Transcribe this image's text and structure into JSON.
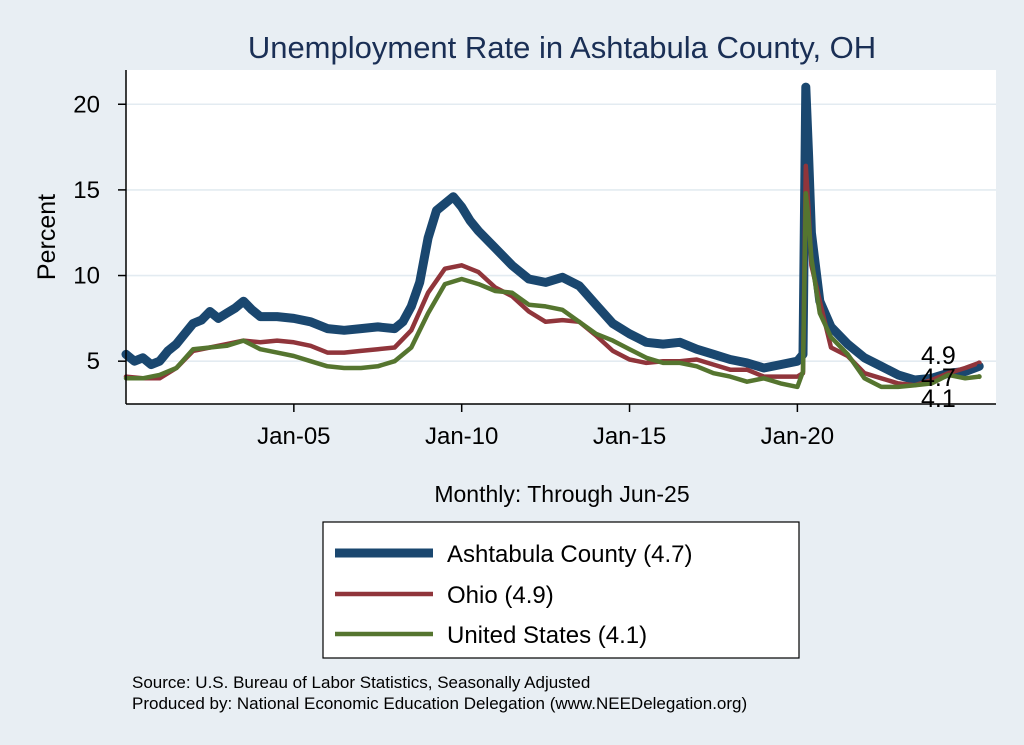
{
  "chart_data": {
    "type": "line",
    "title": "Unemployment Rate in Ashtabula  County, OH",
    "ylabel": "Percent",
    "xlabel": "Monthly: Through Jun-25",
    "ylim": [
      2.5,
      22
    ],
    "xlim": [
      "2000-01",
      "2025-12"
    ],
    "yticks": [
      5,
      10,
      15,
      20
    ],
    "xticks": [
      {
        "date": "2005-01",
        "label": "Jan-05"
      },
      {
        "date": "2010-01",
        "label": "Jan-10"
      },
      {
        "date": "2015-01",
        "label": "Jan-15"
      },
      {
        "date": "2020-01",
        "label": "Jan-20"
      }
    ],
    "grid": true,
    "legend_position": "bottom",
    "series": [
      {
        "name": "Ashtabula  County (4.7)",
        "color": "#1a476f",
        "end_label": "4.7",
        "points": [
          [
            "2000-01",
            5.4
          ],
          [
            "2000-04",
            5.0
          ],
          [
            "2000-07",
            5.2
          ],
          [
            "2000-10",
            4.8
          ],
          [
            "2001-01",
            5.0
          ],
          [
            "2001-04",
            5.6
          ],
          [
            "2001-07",
            6.0
          ],
          [
            "2001-10",
            6.6
          ],
          [
            "2002-01",
            7.2
          ],
          [
            "2002-04",
            7.4
          ],
          [
            "2002-07",
            7.9
          ],
          [
            "2002-10",
            7.5
          ],
          [
            "2003-01",
            7.8
          ],
          [
            "2003-04",
            8.1
          ],
          [
            "2003-07",
            8.5
          ],
          [
            "2003-10",
            8.0
          ],
          [
            "2004-01",
            7.6
          ],
          [
            "2004-07",
            7.6
          ],
          [
            "2005-01",
            7.5
          ],
          [
            "2005-07",
            7.3
          ],
          [
            "2006-01",
            6.9
          ],
          [
            "2006-07",
            6.8
          ],
          [
            "2007-01",
            6.9
          ],
          [
            "2007-07",
            7.0
          ],
          [
            "2008-01",
            6.9
          ],
          [
            "2008-04",
            7.3
          ],
          [
            "2008-07",
            8.2
          ],
          [
            "2008-10",
            9.6
          ],
          [
            "2009-01",
            12.2
          ],
          [
            "2009-04",
            13.8
          ],
          [
            "2009-07",
            14.2
          ],
          [
            "2009-10",
            14.6
          ],
          [
            "2010-01",
            14.0
          ],
          [
            "2010-04",
            13.2
          ],
          [
            "2010-07",
            12.6
          ],
          [
            "2011-01",
            11.6
          ],
          [
            "2011-07",
            10.6
          ],
          [
            "2012-01",
            9.8
          ],
          [
            "2012-07",
            9.6
          ],
          [
            "2013-01",
            9.9
          ],
          [
            "2013-07",
            9.4
          ],
          [
            "2014-01",
            8.3
          ],
          [
            "2014-07",
            7.2
          ],
          [
            "2015-01",
            6.6
          ],
          [
            "2015-07",
            6.1
          ],
          [
            "2016-01",
            6.0
          ],
          [
            "2016-07",
            6.1
          ],
          [
            "2017-01",
            5.7
          ],
          [
            "2017-07",
            5.4
          ],
          [
            "2018-01",
            5.1
          ],
          [
            "2018-07",
            4.9
          ],
          [
            "2019-01",
            4.6
          ],
          [
            "2019-07",
            4.8
          ],
          [
            "2020-01",
            5.0
          ],
          [
            "2020-03",
            5.4
          ],
          [
            "2020-04",
            21.0
          ],
          [
            "2020-05",
            17.0
          ],
          [
            "2020-06",
            12.5
          ],
          [
            "2020-09",
            8.5
          ],
          [
            "2021-01",
            7.0
          ],
          [
            "2021-07",
            6.0
          ],
          [
            "2022-01",
            5.2
          ],
          [
            "2022-07",
            4.7
          ],
          [
            "2023-01",
            4.2
          ],
          [
            "2023-07",
            3.9
          ],
          [
            "2024-01",
            4.0
          ],
          [
            "2024-07",
            4.3
          ],
          [
            "2025-01",
            4.4
          ],
          [
            "2025-06",
            4.7
          ]
        ]
      },
      {
        "name": "Ohio (4.9)",
        "color": "#90353b",
        "end_label": "4.9",
        "points": [
          [
            "2000-01",
            4.1
          ],
          [
            "2000-07",
            4.0
          ],
          [
            "2001-01",
            4.0
          ],
          [
            "2001-07",
            4.6
          ],
          [
            "2002-01",
            5.6
          ],
          [
            "2002-07",
            5.8
          ],
          [
            "2003-01",
            6.0
          ],
          [
            "2003-07",
            6.2
          ],
          [
            "2004-01",
            6.1
          ],
          [
            "2004-07",
            6.2
          ],
          [
            "2005-01",
            6.1
          ],
          [
            "2005-07",
            5.9
          ],
          [
            "2006-01",
            5.5
          ],
          [
            "2006-07",
            5.5
          ],
          [
            "2007-01",
            5.6
          ],
          [
            "2007-07",
            5.7
          ],
          [
            "2008-01",
            5.8
          ],
          [
            "2008-07",
            6.8
          ],
          [
            "2009-01",
            9.0
          ],
          [
            "2009-07",
            10.4
          ],
          [
            "2010-01",
            10.6
          ],
          [
            "2010-07",
            10.2
          ],
          [
            "2011-01",
            9.3
          ],
          [
            "2011-07",
            8.8
          ],
          [
            "2012-01",
            7.9
          ],
          [
            "2012-07",
            7.3
          ],
          [
            "2013-01",
            7.4
          ],
          [
            "2013-07",
            7.3
          ],
          [
            "2014-01",
            6.5
          ],
          [
            "2014-07",
            5.6
          ],
          [
            "2015-01",
            5.1
          ],
          [
            "2015-07",
            4.9
          ],
          [
            "2016-01",
            5.0
          ],
          [
            "2016-07",
            5.0
          ],
          [
            "2017-01",
            5.1
          ],
          [
            "2017-07",
            4.8
          ],
          [
            "2018-01",
            4.5
          ],
          [
            "2018-07",
            4.5
          ],
          [
            "2019-01",
            4.1
          ],
          [
            "2019-07",
            4.1
          ],
          [
            "2020-01",
            4.1
          ],
          [
            "2020-03",
            4.3
          ],
          [
            "2020-04",
            16.4
          ],
          [
            "2020-05",
            13.8
          ],
          [
            "2020-06",
            10.6
          ],
          [
            "2020-09",
            8.5
          ],
          [
            "2021-01",
            5.8
          ],
          [
            "2021-07",
            5.3
          ],
          [
            "2022-01",
            4.3
          ],
          [
            "2022-07",
            4.0
          ],
          [
            "2023-01",
            3.7
          ],
          [
            "2023-07",
            3.6
          ],
          [
            "2024-01",
            3.9
          ],
          [
            "2024-07",
            4.3
          ],
          [
            "2025-01",
            4.6
          ],
          [
            "2025-06",
            4.9
          ]
        ]
      },
      {
        "name": "United States (4.1)",
        "color": "#55752f",
        "end_label": "4.1",
        "points": [
          [
            "2000-01",
            4.0
          ],
          [
            "2000-07",
            4.0
          ],
          [
            "2001-01",
            4.2
          ],
          [
            "2001-07",
            4.6
          ],
          [
            "2002-01",
            5.7
          ],
          [
            "2002-07",
            5.8
          ],
          [
            "2003-01",
            5.9
          ],
          [
            "2003-07",
            6.2
          ],
          [
            "2004-01",
            5.7
          ],
          [
            "2004-07",
            5.5
          ],
          [
            "2005-01",
            5.3
          ],
          [
            "2005-07",
            5.0
          ],
          [
            "2006-01",
            4.7
          ],
          [
            "2006-07",
            4.6
          ],
          [
            "2007-01",
            4.6
          ],
          [
            "2007-07",
            4.7
          ],
          [
            "2008-01",
            5.0
          ],
          [
            "2008-07",
            5.8
          ],
          [
            "2009-01",
            7.8
          ],
          [
            "2009-07",
            9.5
          ],
          [
            "2010-01",
            9.8
          ],
          [
            "2010-07",
            9.5
          ],
          [
            "2011-01",
            9.1
          ],
          [
            "2011-07",
            9.0
          ],
          [
            "2012-01",
            8.3
          ],
          [
            "2012-07",
            8.2
          ],
          [
            "2013-01",
            8.0
          ],
          [
            "2013-07",
            7.3
          ],
          [
            "2014-01",
            6.6
          ],
          [
            "2014-07",
            6.2
          ],
          [
            "2015-01",
            5.7
          ],
          [
            "2015-07",
            5.2
          ],
          [
            "2016-01",
            4.9
          ],
          [
            "2016-07",
            4.9
          ],
          [
            "2017-01",
            4.7
          ],
          [
            "2017-07",
            4.3
          ],
          [
            "2018-01",
            4.1
          ],
          [
            "2018-07",
            3.8
          ],
          [
            "2019-01",
            4.0
          ],
          [
            "2019-07",
            3.7
          ],
          [
            "2020-01",
            3.5
          ],
          [
            "2020-03",
            4.4
          ],
          [
            "2020-04",
            14.8
          ],
          [
            "2020-05",
            13.2
          ],
          [
            "2020-06",
            11.0
          ],
          [
            "2020-09",
            7.8
          ],
          [
            "2021-01",
            6.4
          ],
          [
            "2021-07",
            5.4
          ],
          [
            "2022-01",
            4.0
          ],
          [
            "2022-07",
            3.5
          ],
          [
            "2023-01",
            3.5
          ],
          [
            "2023-07",
            3.6
          ],
          [
            "2024-01",
            3.7
          ],
          [
            "2024-07",
            4.2
          ],
          [
            "2025-01",
            4.0
          ],
          [
            "2025-06",
            4.1
          ]
        ]
      }
    ]
  },
  "source_lines": [
    "Source: U.S. Bureau of Labor Statistics, Seasonally Adjusted",
    "Produced by: National Economic Education Delegation (www.NEEDelegation.org)"
  ]
}
